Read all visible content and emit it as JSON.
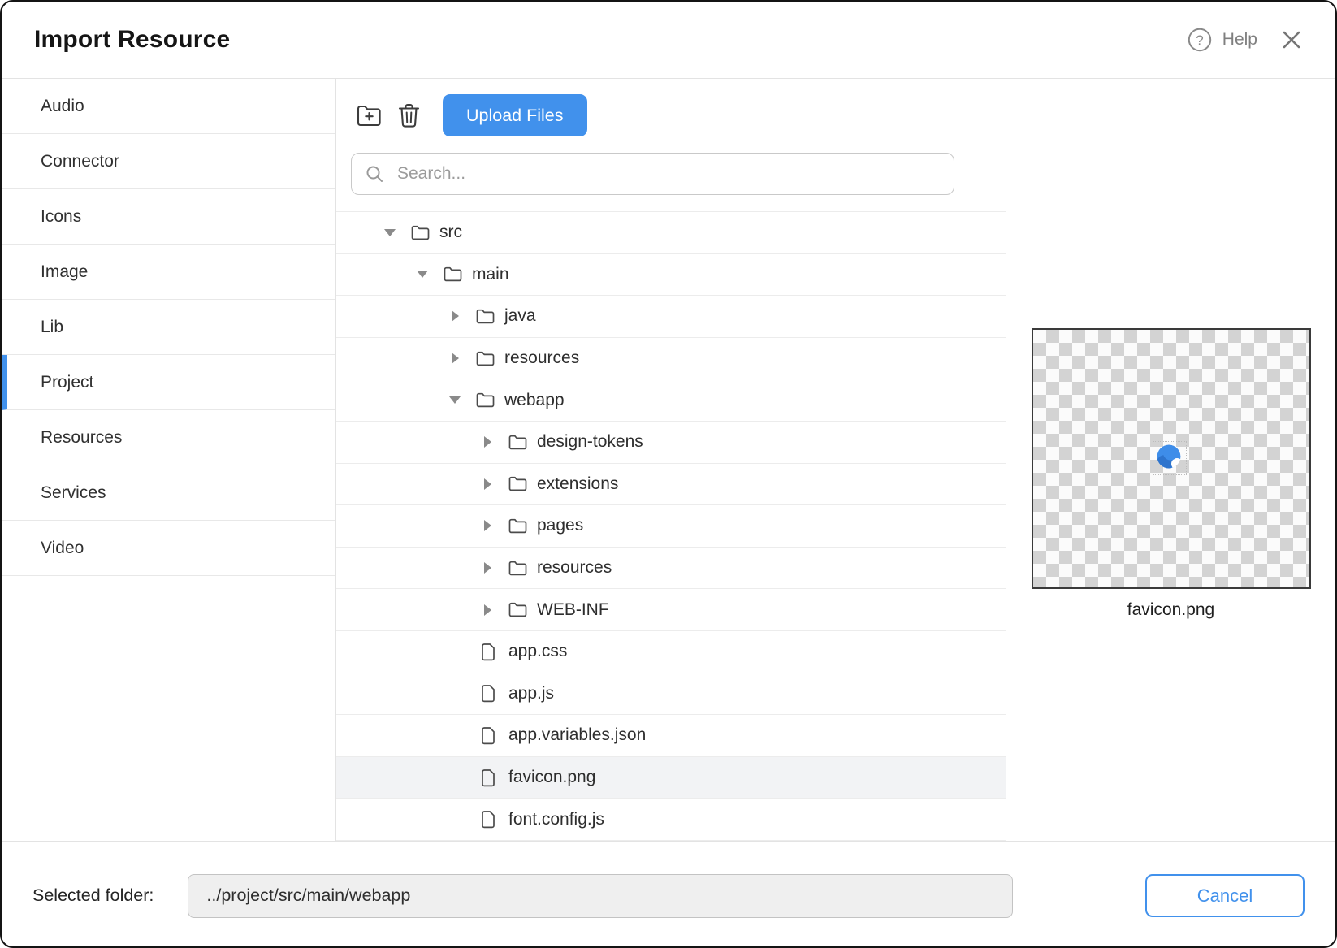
{
  "dialog": {
    "title": "Import Resource",
    "help_label": "Help"
  },
  "colors": {
    "accent": "#4191ec",
    "selected_row_bg": "#f2f3f5",
    "checker_gray": "#d3d3d3",
    "preview_border": "#3a3a3a",
    "favicon_blue": "#3e8de9"
  },
  "sidebar": {
    "items": [
      {
        "label": "Audio",
        "selected": false
      },
      {
        "label": "Connector",
        "selected": false
      },
      {
        "label": "Icons",
        "selected": false
      },
      {
        "label": "Image",
        "selected": false
      },
      {
        "label": "Lib",
        "selected": false
      },
      {
        "label": "Project",
        "selected": true
      },
      {
        "label": "Resources",
        "selected": false
      },
      {
        "label": "Services",
        "selected": false
      },
      {
        "label": "Video",
        "selected": false
      }
    ]
  },
  "toolbar": {
    "upload_label": "Upload Files",
    "icons": [
      "new-folder-icon",
      "trash-icon"
    ]
  },
  "search": {
    "placeholder": "Search..."
  },
  "tree": {
    "rows": [
      {
        "name": "src",
        "type": "folder",
        "level": 0,
        "expanded": true,
        "selected": false
      },
      {
        "name": "main",
        "type": "folder",
        "level": 1,
        "expanded": true,
        "selected": false
      },
      {
        "name": "java",
        "type": "folder",
        "level": 2,
        "expanded": false,
        "selected": false
      },
      {
        "name": "resources",
        "type": "folder",
        "level": 2,
        "expanded": false,
        "selected": false
      },
      {
        "name": "webapp",
        "type": "folder",
        "level": 2,
        "expanded": true,
        "selected": false
      },
      {
        "name": "design-tokens",
        "type": "folder",
        "level": 3,
        "expanded": false,
        "selected": false
      },
      {
        "name": "extensions",
        "type": "folder",
        "level": 3,
        "expanded": false,
        "selected": false
      },
      {
        "name": "pages",
        "type": "folder",
        "level": 3,
        "expanded": false,
        "selected": false
      },
      {
        "name": "resources",
        "type": "folder",
        "level": 3,
        "expanded": false,
        "selected": false
      },
      {
        "name": "WEB-INF",
        "type": "folder",
        "level": 3,
        "expanded": false,
        "selected": false
      },
      {
        "name": "app.css",
        "type": "file",
        "level": 3,
        "selected": false
      },
      {
        "name": "app.js",
        "type": "file",
        "level": 3,
        "selected": false
      },
      {
        "name": "app.variables.json",
        "type": "file",
        "level": 3,
        "selected": false
      },
      {
        "name": "favicon.png",
        "type": "file",
        "level": 3,
        "selected": true
      },
      {
        "name": "font.config.js",
        "type": "file",
        "level": 3,
        "selected": false
      }
    ]
  },
  "preview": {
    "caption": "favicon.png"
  },
  "footer": {
    "label": "Selected folder:",
    "path": "../project/src/main/webapp",
    "cancel_label": "Cancel"
  }
}
